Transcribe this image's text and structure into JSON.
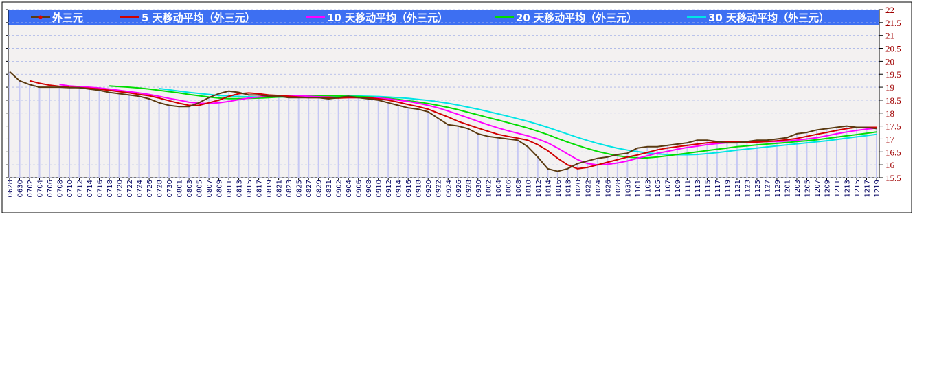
{
  "chart_data": {
    "type": "line",
    "categories": [
      "0628",
      "0630",
      "0702",
      "0704",
      "0706",
      "0708",
      "0710",
      "0712",
      "0714",
      "0716",
      "0718",
      "0720",
      "0722",
      "0724",
      "0726",
      "0728",
      "0730",
      "0801",
      "0803",
      "0805",
      "0807",
      "0809",
      "0811",
      "0813",
      "0815",
      "0817",
      "0819",
      "0821",
      "0823",
      "0825",
      "0827",
      "0829",
      "0831",
      "0902",
      "0904",
      "0906",
      "0908",
      "0910",
      "0912",
      "0914",
      "0916",
      "0918",
      "0920",
      "0922",
      "0924",
      "0926",
      "0928",
      "0930",
      "1002",
      "1004",
      "1006",
      "1008",
      "1010",
      "1012",
      "1014",
      "1016",
      "1018",
      "1020",
      "1022",
      "1024",
      "1026",
      "1028",
      "1030",
      "1101",
      "1103",
      "1105",
      "1107",
      "1109",
      "1111",
      "1113",
      "1115",
      "1117",
      "1119",
      "1121",
      "1123",
      "1125",
      "1127",
      "1129",
      "1201",
      "1203",
      "1205",
      "1207",
      "1209",
      "1211",
      "1213",
      "1215",
      "1217",
      "1219"
    ],
    "series": [
      {
        "name": "外三元",
        "color": "#5a3a10",
        "values": [
          19.6,
          19.25,
          19.1,
          19.0,
          19.0,
          19.0,
          18.98,
          18.98,
          18.93,
          18.88,
          18.8,
          18.75,
          18.7,
          18.65,
          18.55,
          18.4,
          18.3,
          18.25,
          18.25,
          18.4,
          18.6,
          18.75,
          18.85,
          18.8,
          18.7,
          18.7,
          18.65,
          18.65,
          18.6,
          18.6,
          18.6,
          18.6,
          18.55,
          18.6,
          18.65,
          18.6,
          18.55,
          18.5,
          18.4,
          18.3,
          18.2,
          18.15,
          18.05,
          17.8,
          17.55,
          17.5,
          17.4,
          17.2,
          17.1,
          17.05,
          17.0,
          16.95,
          16.7,
          16.3,
          15.85,
          15.75,
          15.85,
          16.05,
          16.15,
          16.25,
          16.3,
          16.4,
          16.45,
          16.65,
          16.7,
          16.7,
          16.75,
          16.8,
          16.85,
          16.95,
          16.95,
          16.9,
          16.85,
          16.85,
          16.9,
          16.95,
          16.95,
          17.0,
          17.05,
          17.2,
          17.25,
          17.35,
          17.4,
          17.45,
          17.5,
          17.45,
          17.45,
          17.4
        ]
      },
      {
        "name": "5 天移动平均（外三元）",
        "color": "#d00000",
        "values": [
          null,
          null,
          19.25,
          19.15,
          19.08,
          19.03,
          19.0,
          18.98,
          18.96,
          18.93,
          18.88,
          18.83,
          18.78,
          18.72,
          18.67,
          18.58,
          18.48,
          18.38,
          18.3,
          18.3,
          18.4,
          18.5,
          18.65,
          18.75,
          18.78,
          18.75,
          18.7,
          18.68,
          18.65,
          18.62,
          18.6,
          18.6,
          18.58,
          18.58,
          18.6,
          18.6,
          18.6,
          18.55,
          18.5,
          18.42,
          18.33,
          18.25,
          18.15,
          18.0,
          17.85,
          17.68,
          17.55,
          17.42,
          17.3,
          17.18,
          17.1,
          17.03,
          16.95,
          16.78,
          16.55,
          16.25,
          16.0,
          15.85,
          15.9,
          16.0,
          16.1,
          16.2,
          16.3,
          16.38,
          16.48,
          16.58,
          16.65,
          16.7,
          16.75,
          16.8,
          16.85,
          16.88,
          16.9,
          16.88,
          16.88,
          16.88,
          16.9,
          16.93,
          16.97,
          17.02,
          17.1,
          17.18,
          17.25,
          17.33,
          17.4,
          17.45,
          17.45,
          17.45
        ]
      },
      {
        "name": "10 天移动平均（外三元）",
        "color": "#ff00ff",
        "values": [
          null,
          null,
          null,
          null,
          null,
          19.1,
          19.05,
          19.02,
          19.0,
          18.97,
          18.93,
          18.88,
          18.83,
          18.78,
          18.72,
          18.65,
          18.57,
          18.5,
          18.42,
          18.38,
          18.37,
          18.4,
          18.45,
          18.52,
          18.58,
          18.62,
          18.65,
          18.67,
          18.68,
          18.67,
          18.65,
          18.63,
          18.62,
          18.6,
          18.6,
          18.6,
          18.6,
          18.58,
          18.55,
          18.5,
          18.45,
          18.38,
          18.3,
          18.2,
          18.08,
          17.95,
          17.82,
          17.68,
          17.55,
          17.43,
          17.32,
          17.22,
          17.12,
          17.0,
          16.85,
          16.65,
          16.42,
          16.2,
          16.05,
          16.0,
          16.02,
          16.07,
          16.15,
          16.25,
          16.35,
          16.45,
          16.52,
          16.6,
          16.67,
          16.72,
          16.78,
          16.82,
          16.85,
          16.87,
          16.88,
          16.88,
          16.9,
          16.9,
          16.92,
          16.95,
          17.0,
          17.05,
          17.12,
          17.2,
          17.27,
          17.33,
          17.38,
          17.42
        ]
      },
      {
        "name": "20 天移动平均（外三元）",
        "color": "#00dd00",
        "values": [
          null,
          null,
          null,
          null,
          null,
          null,
          null,
          null,
          null,
          null,
          19.05,
          19.02,
          19.0,
          18.97,
          18.93,
          18.88,
          18.83,
          18.78,
          18.72,
          18.67,
          18.62,
          18.58,
          18.56,
          18.56,
          18.57,
          18.58,
          18.6,
          18.62,
          18.63,
          18.65,
          18.66,
          18.67,
          18.67,
          18.66,
          18.65,
          18.64,
          18.62,
          18.6,
          18.57,
          18.53,
          18.48,
          18.43,
          18.37,
          18.3,
          18.22,
          18.13,
          18.03,
          17.93,
          17.83,
          17.73,
          17.63,
          17.53,
          17.42,
          17.3,
          17.17,
          17.02,
          16.88,
          16.75,
          16.63,
          16.52,
          16.43,
          16.35,
          16.3,
          16.27,
          16.27,
          16.3,
          16.35,
          16.4,
          16.45,
          16.5,
          16.55,
          16.6,
          16.65,
          16.7,
          16.73,
          16.77,
          16.8,
          16.83,
          16.86,
          16.9,
          16.93,
          16.97,
          17.02,
          17.07,
          17.12,
          17.17,
          17.22,
          17.27
        ]
      },
      {
        "name": "30 天移动平均（外三元）",
        "color": "#00e5e5",
        "values": [
          null,
          null,
          null,
          null,
          null,
          null,
          null,
          null,
          null,
          null,
          null,
          null,
          null,
          null,
          null,
          18.95,
          18.9,
          18.85,
          18.8,
          18.76,
          18.72,
          18.68,
          18.66,
          18.64,
          18.63,
          18.62,
          18.62,
          18.62,
          18.63,
          18.63,
          18.64,
          18.65,
          18.66,
          18.66,
          18.66,
          18.66,
          18.65,
          18.64,
          18.62,
          18.6,
          18.57,
          18.53,
          18.49,
          18.44,
          18.38,
          18.31,
          18.23,
          18.15,
          18.06,
          17.97,
          17.88,
          17.78,
          17.68,
          17.57,
          17.45,
          17.32,
          17.19,
          17.06,
          16.94,
          16.83,
          16.73,
          16.64,
          16.57,
          16.51,
          16.46,
          16.42,
          16.4,
          16.39,
          16.39,
          16.4,
          16.43,
          16.47,
          16.52,
          16.57,
          16.61,
          16.65,
          16.69,
          16.73,
          16.77,
          16.81,
          16.85,
          16.89,
          16.93,
          16.98,
          17.03,
          17.08,
          17.13,
          17.18
        ]
      }
    ],
    "ylim": [
      15.5,
      22
    ],
    "yticks": [
      22,
      21.5,
      21,
      20.5,
      20,
      19.5,
      19,
      18.5,
      18,
      17.5,
      17,
      16.5,
      16,
      15.5
    ],
    "grid": true
  }
}
